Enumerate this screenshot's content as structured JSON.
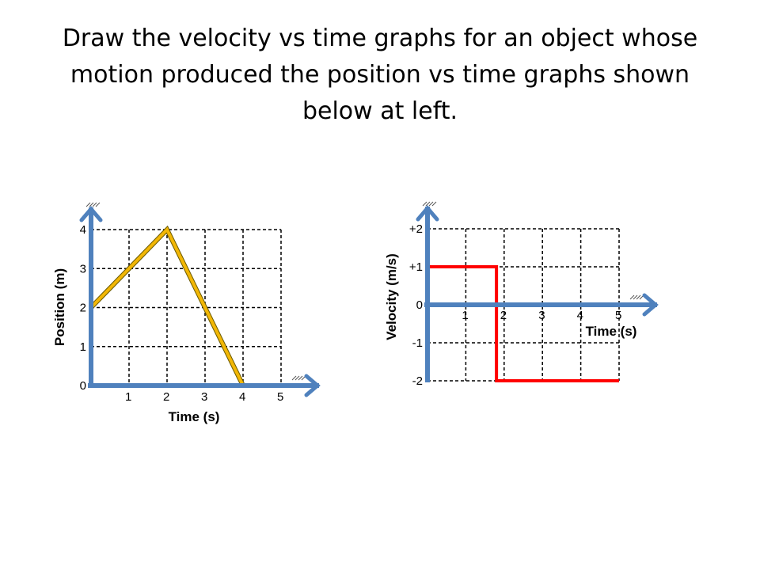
{
  "slide": {
    "title": "Draw the velocity vs time graphs for an object whose motion produced the position vs time graphs shown below at left."
  },
  "colors": {
    "axis": "#4f81bd",
    "position_line": "#f2b705",
    "velocity_line": "#ff0000",
    "grid": "#000000"
  },
  "chart_data": [
    {
      "type": "line",
      "xlabel": "Time (s)",
      "ylabel": "Position (m)",
      "xlim": [
        0,
        5
      ],
      "ylim": [
        0,
        4
      ],
      "xticks": [
        "1",
        "2",
        "3",
        "4",
        "5"
      ],
      "yticks": [
        "0",
        "1",
        "2",
        "3",
        "4"
      ],
      "grid": true,
      "x": [
        0,
        2,
        4
      ],
      "y": [
        2,
        4,
        0
      ]
    },
    {
      "type": "line",
      "xlabel": "Time (s)",
      "ylabel": "Velocity (m/s)",
      "xlim": [
        0,
        5
      ],
      "ylim": [
        -2,
        2
      ],
      "xticks": [
        "1",
        "2",
        "3",
        "4",
        "5"
      ],
      "yticks": [
        "-2",
        "-1",
        "0",
        "+1",
        "+2"
      ],
      "grid": true,
      "x": [
        0,
        1.8,
        1.8,
        5
      ],
      "y": [
        1,
        1,
        -2,
        -2
      ]
    }
  ]
}
